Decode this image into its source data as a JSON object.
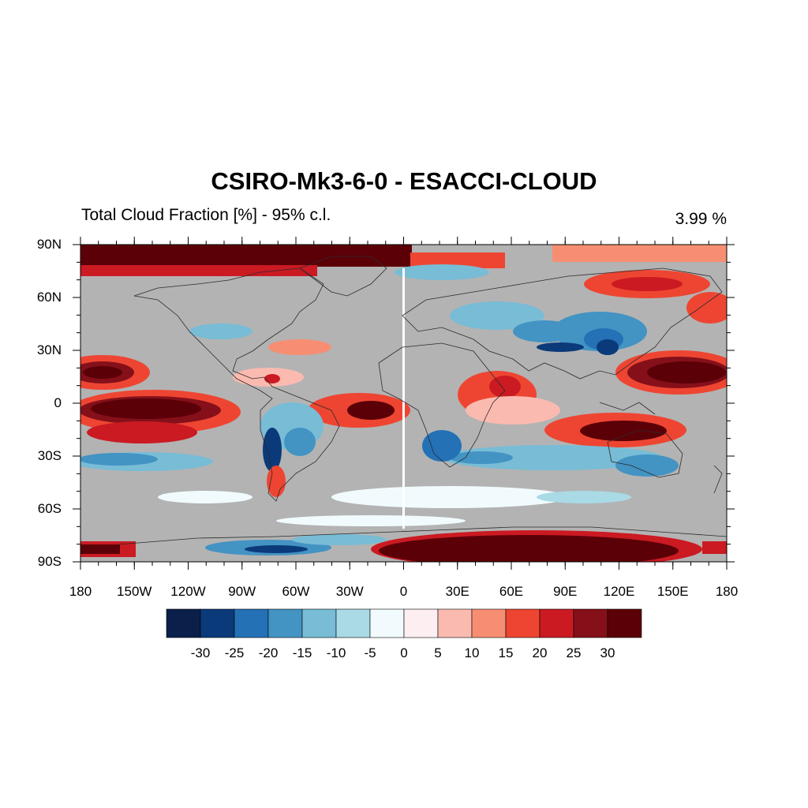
{
  "title": "CSIRO-Mk3-6-0 - ESACCI-CLOUD",
  "subtitle_left": "Total Cloud Fraction [%] - 95% c.l.",
  "subtitle_right": "3.99 %",
  "lat_labels": [
    "90N",
    "60N",
    "30N",
    "0",
    "30S",
    "60S",
    "90S"
  ],
  "lon_labels": [
    "180",
    "150W",
    "120W",
    "90W",
    "60W",
    "30W",
    "0",
    "30E",
    "60E",
    "90E",
    "120E",
    "150E",
    "180"
  ],
  "colorbar": {
    "labels": [
      "-30",
      "-25",
      "-20",
      "-15",
      "-10",
      "-5",
      "0",
      "5",
      "10",
      "15",
      "20",
      "25",
      "30"
    ],
    "colors": [
      "#0a1f4a",
      "#0b3a7a",
      "#2471b5",
      "#4393c3",
      "#78bcd6",
      "#a9dae6",
      "#f1fbfd",
      "#fdeef2",
      "#fbbab0",
      "#f78e72",
      "#ee4532",
      "#cb1a22",
      "#85101a",
      "#5c0008"
    ]
  },
  "map": {
    "background_color": "#b3b3b3",
    "missing_color": "#b3b3b3",
    "coastline_color": "#2b2b2b"
  }
}
